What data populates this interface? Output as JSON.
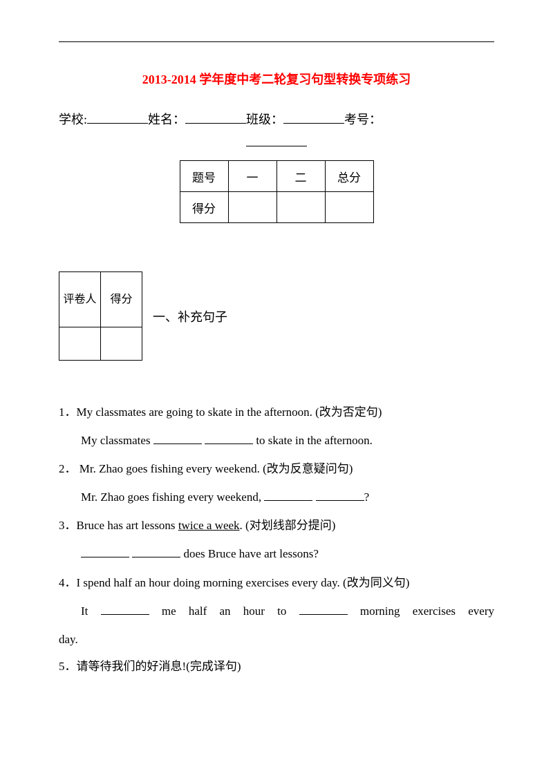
{
  "title": "2013-2014 学年度中考二轮复习句型转换专项练习",
  "info": {
    "school_label": "学校:",
    "name_label": "姓名：",
    "class_label": "班级：",
    "exam_no_label": "考号："
  },
  "score_table": {
    "header_label": "题号",
    "col1": "一",
    "col2": "二",
    "total": "总分",
    "score_label": "得分"
  },
  "grader_table": {
    "grader_label": "评卷人",
    "score_label": "得分"
  },
  "section1_title": "一、补充句子",
  "questions": {
    "q1": {
      "num": "1．",
      "text": "My classmates are going to skate in the afternoon. (改为否定句)",
      "ans_pre": "My classmates ",
      "ans_post": " to skate in the afternoon."
    },
    "q2": {
      "num": "2．",
      "text": " Mr. Zhao goes fishing every weekend. (改为反意疑问句)",
      "ans_pre": "Mr. Zhao goes fishing every weekend, ",
      "ans_post": "?"
    },
    "q3": {
      "num": "3．",
      "pre": "Bruce has art lessons ",
      "underlined": "twice a week",
      "post": ". (对划线部分提问)",
      "ans_post": " does Bruce have art lessons?"
    },
    "q4": {
      "num": "4．",
      "text": "I spend half an hour doing morning exercises every day. (改为同义句)",
      "ans_pre": "It ",
      "ans_mid": " me half an hour to ",
      "ans_post": " morning exercises every",
      "ans_line2": "day."
    },
    "q5": {
      "num": "5．",
      "text": "请等待我们的好消息!(完成译句)"
    }
  },
  "colors": {
    "title_color": "#ff0000",
    "text_color": "#000000",
    "background": "#ffffff"
  },
  "typography": {
    "title_fontsize": 18,
    "body_fontsize": 17,
    "font_family": "SimSun, Times New Roman"
  }
}
